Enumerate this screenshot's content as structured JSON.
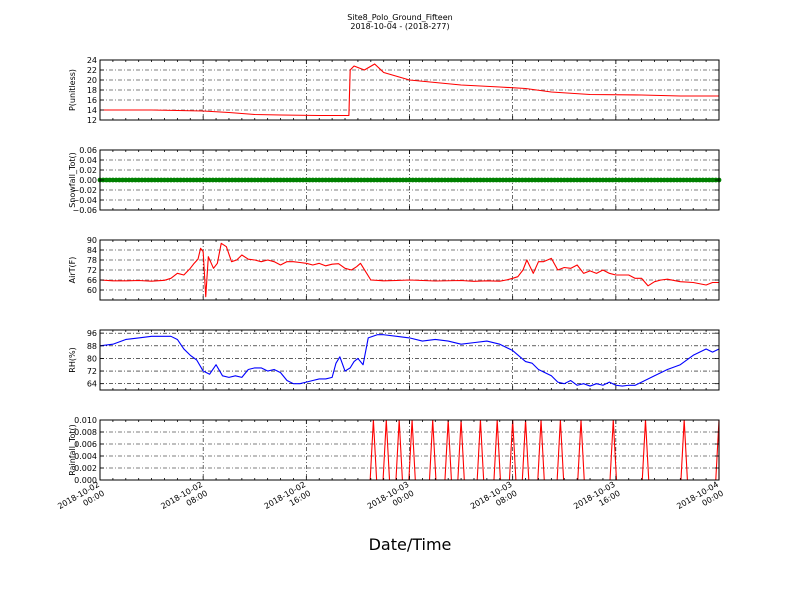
{
  "figure": {
    "title_line1": "Site8_Polo_Ground_Fifteen",
    "title_line2": "2018-10-04 - (2018-277)",
    "xlabel": "Date/Time",
    "x_ticks": [
      {
        "t": 0,
        "line1": "2018-10-02",
        "line2": "00:00"
      },
      {
        "t": 8,
        "line1": "2018-10-02",
        "line2": "08:00"
      },
      {
        "t": 16,
        "line1": "2018-10-02",
        "line2": "16:00"
      },
      {
        "t": 24,
        "line1": "2018-10-03",
        "line2": "00:00"
      },
      {
        "t": 32,
        "line1": "2018-10-03",
        "line2": "08:00"
      },
      {
        "t": 40,
        "line1": "2018-10-03",
        "line2": "16:00"
      },
      {
        "t": 48,
        "line1": "2018-10-04",
        "line2": "00:00"
      }
    ]
  },
  "chart_data": [
    {
      "type": "line",
      "ylabel": "P(unitless)",
      "color": "#ff0000",
      "ylim": [
        12,
        24
      ],
      "yticks": [
        12,
        14,
        16,
        18,
        20,
        22,
        24
      ],
      "ytick_labels": [
        "12",
        "14",
        "16",
        "18",
        "20",
        "22",
        "24"
      ],
      "x_hours": [
        0,
        4,
        8,
        10,
        12,
        14,
        17,
        19.3,
        19.4,
        19.7,
        20.5,
        21.3,
        22,
        24,
        26,
        28,
        31,
        33,
        35,
        38,
        42,
        45,
        48
      ],
      "y": [
        14.0,
        14.0,
        13.8,
        13.5,
        13.1,
        13.0,
        12.9,
        12.9,
        22.0,
        22.8,
        22.0,
        23.2,
        21.5,
        20.0,
        19.5,
        19.0,
        18.6,
        18.3,
        17.6,
        17.1,
        17.0,
        16.8,
        16.8
      ]
    },
    {
      "type": "scatter",
      "ylabel": "Snowfall_Tot()",
      "color": "#008000",
      "ylim": [
        -0.06,
        0.06
      ],
      "yticks": [
        -0.06,
        -0.04,
        -0.02,
        0.0,
        0.02,
        0.04,
        0.06
      ],
      "ytick_labels": [
        "−0.06",
        "−0.04",
        "−0.02",
        "0.00",
        "0.02",
        "0.04",
        "0.06"
      ],
      "x_range": [
        0,
        48
      ],
      "interval_hours": 0.25,
      "constant_value": 0.0
    },
    {
      "type": "line",
      "ylabel": "AirT(F)",
      "color": "#ff0000",
      "ylim": [
        54,
        90
      ],
      "yticks": [
        60,
        66,
        72,
        78,
        84,
        90
      ],
      "ytick_labels": [
        "60",
        "66",
        "72",
        "78",
        "84",
        "90"
      ],
      "x_hours": [
        0,
        1,
        2,
        3,
        4,
        5,
        5.5,
        6,
        6.5,
        7,
        7.3,
        7.6,
        7.8,
        8.0,
        8.2,
        8.4,
        8.8,
        9.1,
        9.4,
        9.8,
        10.2,
        10.6,
        11,
        11.5,
        12,
        12.5,
        13,
        13.5,
        14,
        14.5,
        15,
        15.5,
        16,
        16.5,
        17,
        17.5,
        18,
        18.5,
        19,
        19.5,
        19.9,
        20.2,
        21,
        22,
        23,
        24,
        26,
        28,
        29,
        30,
        31,
        31.5,
        32,
        32.4,
        32.8,
        33.1,
        33.6,
        34.0,
        34.4,
        35,
        35.5,
        36,
        36.5,
        37,
        37.5,
        38,
        38.5,
        39,
        39.5,
        40,
        41,
        41.5,
        42,
        42.5,
        43,
        43.5,
        44,
        45,
        46,
        47,
        47.5,
        48
      ],
      "y": [
        66,
        65.5,
        65.5,
        65.7,
        65.3,
        65.8,
        67,
        70,
        69,
        73,
        76,
        78.5,
        85,
        83,
        56,
        80,
        73,
        76,
        88,
        86,
        77,
        78,
        81,
        78.5,
        78,
        77,
        78,
        77,
        75,
        77,
        77,
        76.5,
        76,
        75,
        76,
        74.5,
        75.5,
        75.8,
        73,
        72,
        74,
        76,
        66,
        65.5,
        65.7,
        66,
        65.4,
        65.7,
        65.2,
        65.5,
        65.3,
        66,
        67,
        68,
        72,
        78,
        70,
        77,
        77,
        79,
        72,
        73.5,
        73,
        75,
        70,
        71.5,
        70,
        72,
        70,
        69,
        69,
        67,
        67,
        62.5,
        65,
        66,
        66.5,
        65,
        64.5,
        63,
        64.5,
        64.5
      ]
    },
    {
      "type": "line",
      "ylabel": "RH(%)",
      "color": "#0000ff",
      "ylim": [
        60,
        98
      ],
      "yticks": [
        64,
        72,
        80,
        88,
        96
      ],
      "ytick_labels": [
        "64",
        "72",
        "80",
        "88",
        "96"
      ],
      "x_hours": [
        0,
        1,
        2,
        3,
        4,
        5,
        5.5,
        6,
        6.5,
        7,
        7.5,
        8,
        8.5,
        9,
        9.5,
        10,
        10.5,
        11,
        11.5,
        12,
        12.5,
        13,
        13.5,
        14,
        14.5,
        15,
        15.5,
        16,
        16.5,
        17,
        17.5,
        18,
        18.3,
        18.6,
        19,
        19.4,
        19.7,
        20,
        20.4,
        20.8,
        21.5,
        22,
        23,
        24,
        25,
        26,
        27,
        28,
        29,
        30,
        31,
        32,
        33,
        33.5,
        34,
        34.5,
        35,
        35.5,
        36,
        36.5,
        37,
        37.5,
        38,
        38.5,
        39,
        39.5,
        40,
        40.5,
        41,
        41.5,
        42,
        43,
        44,
        45,
        46,
        47,
        47.5,
        48
      ],
      "y": [
        88,
        89,
        92,
        93,
        94,
        94,
        94,
        92,
        86,
        82,
        79,
        72,
        70,
        76,
        69,
        68,
        69,
        68,
        73,
        74,
        74,
        72,
        73,
        71,
        66,
        64,
        64,
        65,
        66,
        67,
        67,
        68,
        77,
        81,
        72,
        74,
        78,
        80,
        76,
        93,
        95,
        95,
        94,
        93,
        91,
        92,
        91,
        89,
        90,
        91,
        89,
        85,
        78,
        77,
        73,
        71,
        69,
        65,
        64,
        66,
        63,
        64,
        62.5,
        64,
        63,
        65,
        63,
        62.5,
        63,
        63,
        65,
        69,
        73,
        76,
        82,
        86,
        84,
        86
      ]
    },
    {
      "type": "line",
      "ylabel": "Rainfall_Tot()",
      "color": "#ff0000",
      "ylim": [
        0,
        0.01
      ],
      "yticks": [
        0,
        0.002,
        0.004,
        0.006,
        0.008,
        0.01
      ],
      "ytick_labels": [
        "0.000",
        "0.002",
        "0.004",
        "0.006",
        "0.008",
        "0.010"
      ],
      "spike_value": 0.01,
      "spike_half_width_hours": 0.25,
      "spikes_hours": [
        21.2,
        22.2,
        23.2,
        24.2,
        25.8,
        27.0,
        28.0,
        29.5,
        30.8,
        32.0,
        33.0,
        34.2,
        35.7,
        37.3,
        39.8,
        42.3,
        45.3,
        48.0
      ]
    }
  ]
}
